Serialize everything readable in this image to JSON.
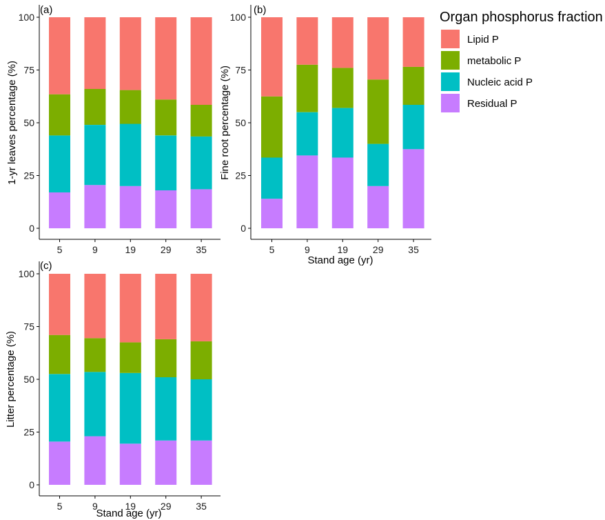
{
  "legend": {
    "title": "Organ phosphorus fraction",
    "entries": [
      {
        "label": "Lipid P",
        "color": "#F8766D"
      },
      {
        "label": "metabolic P",
        "color": "#7CAE00"
      },
      {
        "label": "Nucleic acid P",
        "color": "#00BFC4"
      },
      {
        "label": "Residual P",
        "color": "#C77CFF"
      }
    ]
  },
  "chart_data": [
    {
      "panel": "(a)",
      "type": "bar",
      "stacked": true,
      "categories": [
        "5",
        "9",
        "19",
        "29",
        "35"
      ],
      "xlabel": "",
      "ylabel": "1-yr leaves percentage (%)",
      "ylim": [
        0,
        100
      ],
      "yticks": [
        0,
        25,
        50,
        75,
        100
      ],
      "series": [
        {
          "name": "Residual P",
          "values": [
            17,
            20.5,
            20,
            18,
            18.5
          ]
        },
        {
          "name": "Nucleic acid P",
          "values": [
            27,
            28.5,
            29.5,
            26,
            25
          ]
        },
        {
          "name": "metabolic P",
          "values": [
            19.5,
            17,
            16,
            17,
            15
          ]
        },
        {
          "name": "Lipid P",
          "values": [
            36.5,
            34,
            34.5,
            39,
            41.5
          ]
        }
      ]
    },
    {
      "panel": "(b)",
      "type": "bar",
      "stacked": true,
      "categories": [
        "5",
        "9",
        "19",
        "29",
        "35"
      ],
      "xlabel": "Stand age (yr)",
      "ylabel": "Fine root percentage (%)",
      "ylim": [
        0,
        100
      ],
      "yticks": [
        0,
        25,
        50,
        75,
        100
      ],
      "series": [
        {
          "name": "Residual P",
          "values": [
            14,
            34.5,
            33.5,
            20,
            37.5
          ]
        },
        {
          "name": "Nucleic acid P",
          "values": [
            19.5,
            20.5,
            23.5,
            20,
            21
          ]
        },
        {
          "name": "metabolic P",
          "values": [
            29,
            22.5,
            19,
            30.5,
            18
          ]
        },
        {
          "name": "Lipid P",
          "values": [
            37.5,
            22.5,
            24,
            29.5,
            23.5
          ]
        }
      ]
    },
    {
      "panel": "(c)",
      "type": "bar",
      "stacked": true,
      "categories": [
        "5",
        "9",
        "19",
        "29",
        "35"
      ],
      "xlabel": "Stand age (yr)",
      "ylabel": "Litter percentage (%)",
      "ylim": [
        0,
        100
      ],
      "yticks": [
        0,
        25,
        50,
        75,
        100
      ],
      "series": [
        {
          "name": "Residual P",
          "values": [
            20.5,
            23,
            19.5,
            21,
            21
          ]
        },
        {
          "name": "Nucleic acid P",
          "values": [
            32,
            30.5,
            33.5,
            30,
            29
          ]
        },
        {
          "name": "metabolic P",
          "values": [
            18.5,
            16,
            14.5,
            18,
            18
          ]
        },
        {
          "name": "Lipid P",
          "values": [
            29,
            30.5,
            32.5,
            31,
            32
          ]
        }
      ]
    }
  ]
}
